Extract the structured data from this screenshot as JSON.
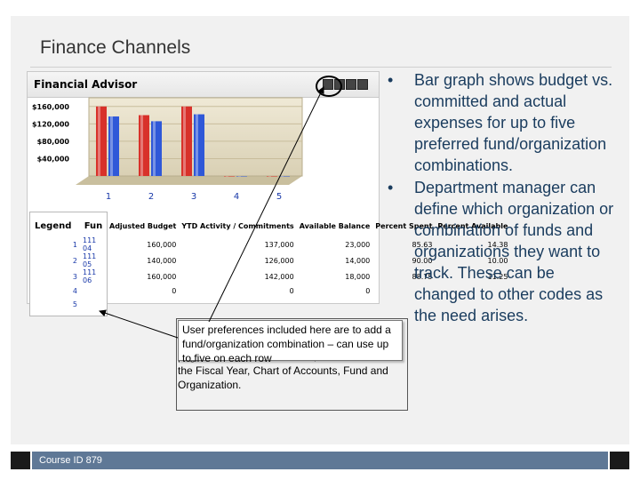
{
  "slide": {
    "title": "Finance Channels",
    "footer_course_id": "Course ID 879"
  },
  "widget": {
    "title": "Financial Advisor",
    "controls": [
      "edit-icon",
      "minimize-icon",
      "menu-icon",
      "close-icon"
    ]
  },
  "chart_data": {
    "type": "bar",
    "categories": [
      "1",
      "2",
      "3",
      "4",
      "5"
    ],
    "yticks": [
      "$160,000",
      "$120,000",
      "$80,000",
      "$40,000"
    ],
    "ylim": [
      0,
      180000
    ],
    "series": [
      {
        "color": "#d8312a",
        "values": [
          160000,
          140000,
          160000,
          0,
          0
        ]
      },
      {
        "color": "#2f58d8",
        "values": [
          137000,
          126000,
          142000,
          0,
          0
        ]
      }
    ]
  },
  "table": {
    "headers": [
      "Legend",
      "Fun",
      "Adjusted Budget",
      "YTD Activity / Commitments",
      "Available Balance",
      "Percent Spent",
      "Percent Available"
    ],
    "rows": [
      {
        "idx": "1",
        "fund": "111",
        "suffix": "04",
        "budget": "160,000",
        "ytd": "137,000",
        "avail": "23,000",
        "spent": "85.63",
        "pavail": "14.38"
      },
      {
        "idx": "2",
        "fund": "111",
        "suffix": "05",
        "budget": "140,000",
        "ytd": "126,000",
        "avail": "14,000",
        "spent": "90.00",
        "pavail": "10.00"
      },
      {
        "idx": "3",
        "fund": "111",
        "suffix": "06",
        "budget": "160,000",
        "ytd": "142,000",
        "avail": "18,000",
        "spent": "88.75",
        "pavail": "11.25"
      },
      {
        "idx": "4",
        "fund": "",
        "suffix": "",
        "budget": "0",
        "ytd": "0",
        "avail": "0",
        "spent": "",
        "pavail": ""
      },
      {
        "idx": "5",
        "fund": "",
        "suffix": "",
        "budget": "",
        "ytd": "",
        "avail": "",
        "spent": "",
        "pavail": ""
      }
    ]
  },
  "callout": {
    "front_text": "User preferences included here are to add a fund/organization combination – can use up to five on each row",
    "back_text": "page in Finance Self Service, and defaults for the Fiscal Year, Chart of Accounts, Fund and Organization."
  },
  "bullets": [
    "Bar graph shows budget vs. committed and actual expenses for up to five preferred fund/organization combinations.",
    "Department manager can define which organization or combination of funds and organizations they want to track. These can be changed to other codes as the need arises."
  ]
}
